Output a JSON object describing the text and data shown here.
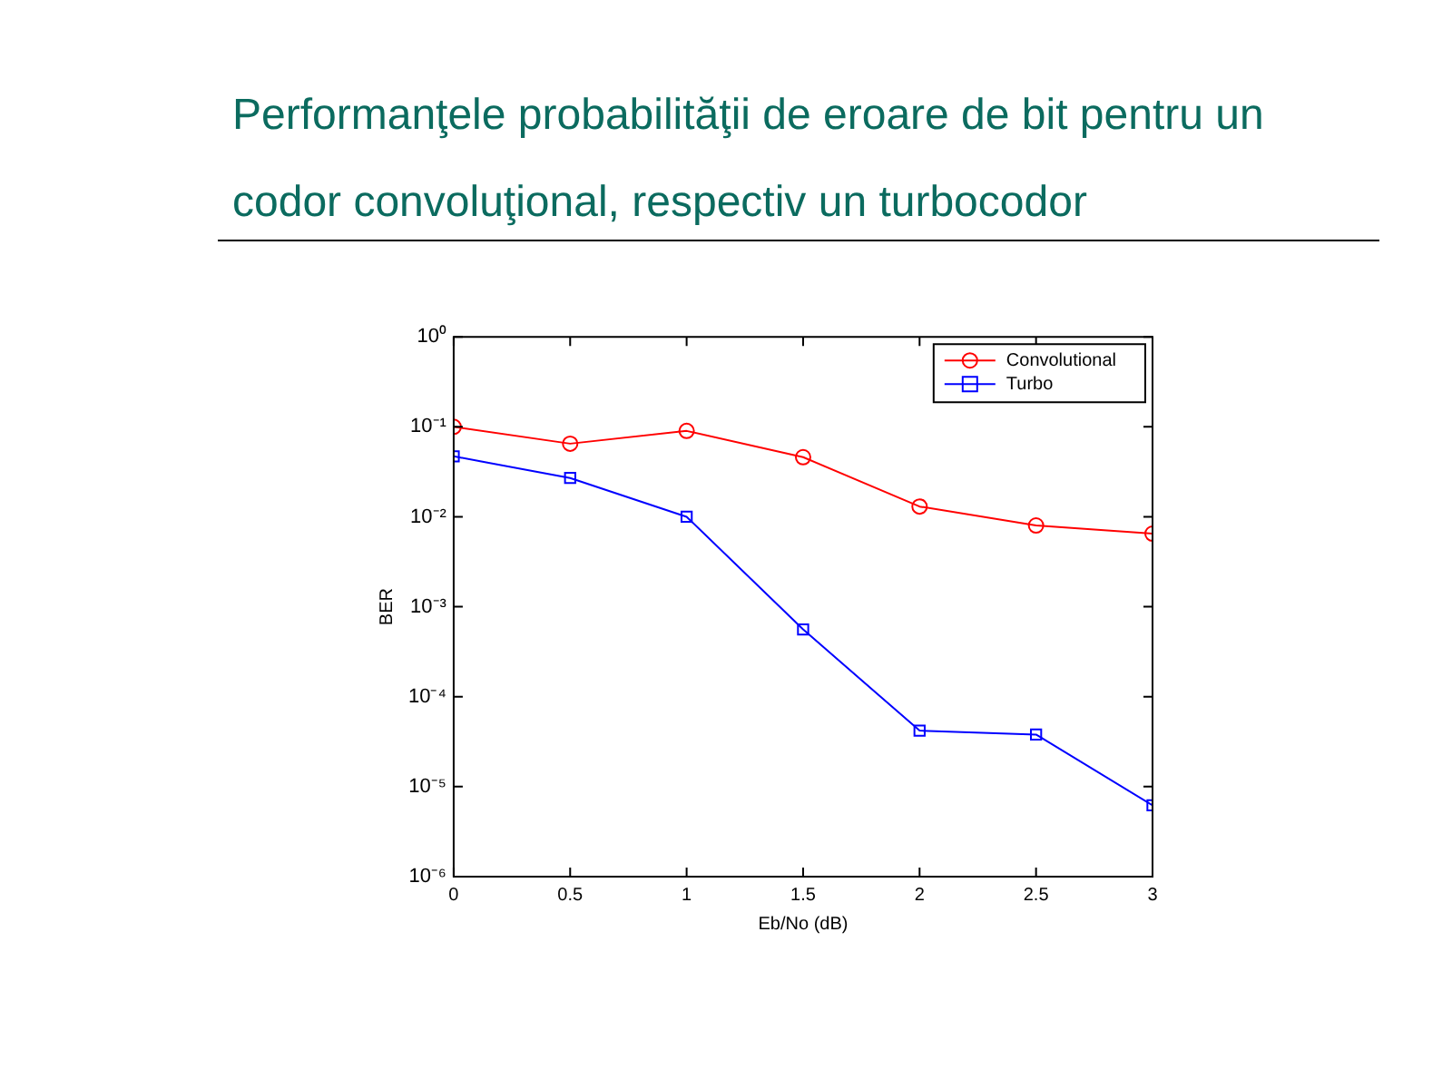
{
  "chart_data": {
    "type": "line",
    "title": "Performanţele probabilităţii de eroare de bit pentru un codor convoluţional, respectiv un turbocodor",
    "xlabel": "Eb/No (dB)",
    "ylabel": "BER",
    "x": [
      0,
      0.5,
      1,
      1.5,
      2,
      2.5,
      3
    ],
    "series": [
      {
        "name": "Convolutional",
        "color": "#ff0000",
        "marker": "circle",
        "values": [
          0.1,
          0.065,
          0.09,
          0.046,
          0.013,
          0.008,
          0.0065
        ]
      },
      {
        "name": "Turbo",
        "color": "#0000ff",
        "marker": "square",
        "values": [
          0.047,
          0.027,
          0.01,
          0.00056,
          4.2e-05,
          3.8e-05,
          6.2e-06
        ]
      }
    ],
    "log": "y",
    "xlim": [
      0,
      3
    ],
    "xticks": [
      0,
      0.5,
      1,
      1.5,
      2,
      2.5,
      3
    ],
    "ylim": [
      1e-06,
      1
    ],
    "yticks": [
      {
        "value": 1e-06,
        "label": "10⁻⁶"
      },
      {
        "value": 1e-05,
        "label": "10⁻⁵"
      },
      {
        "value": 0.0001,
        "label": "10⁻⁴"
      },
      {
        "value": 0.001,
        "label": "10⁻³"
      },
      {
        "value": 0.01,
        "label": "10⁻²"
      },
      {
        "value": 0.1,
        "label": "10⁻¹"
      },
      {
        "value": 1,
        "label": "10⁰"
      }
    ],
    "grid": false,
    "legend": "top right",
    "line_style": "solid"
  }
}
